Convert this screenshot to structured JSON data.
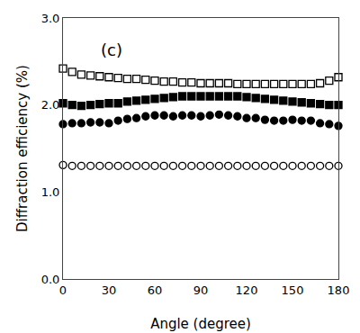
{
  "chart_data": {
    "type": "scatter",
    "xlabel": "Angle (degree)",
    "ylabel": "Diffraction efficiency (%)",
    "annotations": [
      "(c)"
    ],
    "xlim": [
      0,
      180
    ],
    "ylim": [
      0.0,
      3.0
    ],
    "xticks": [
      0,
      30,
      60,
      90,
      120,
      150,
      180
    ],
    "yticks": [
      {
        "value": 0.0,
        "label": "0.0"
      },
      {
        "value": 1.0,
        "label": "1.0"
      },
      {
        "value": 2.0,
        "label": "2.0"
      },
      {
        "value": 3.0,
        "label": "3.0"
      }
    ],
    "grid": false,
    "x": [
      0,
      6,
      12,
      18,
      24,
      30,
      36,
      42,
      48,
      54,
      60,
      66,
      72,
      78,
      84,
      90,
      96,
      102,
      108,
      114,
      120,
      126,
      132,
      138,
      144,
      150,
      156,
      162,
      168,
      174,
      180
    ],
    "series": [
      {
        "marker": "circle-open",
        "color": "#000000",
        "values": [
          1.31,
          1.3,
          1.3,
          1.3,
          1.3,
          1.3,
          1.3,
          1.3,
          1.3,
          1.3,
          1.3,
          1.3,
          1.3,
          1.3,
          1.3,
          1.3,
          1.3,
          1.3,
          1.3,
          1.3,
          1.3,
          1.3,
          1.3,
          1.3,
          1.3,
          1.3,
          1.3,
          1.3,
          1.3,
          1.3,
          1.3
        ]
      },
      {
        "marker": "circle",
        "color": "#000000",
        "values": [
          1.78,
          1.79,
          1.79,
          1.8,
          1.8,
          1.79,
          1.82,
          1.84,
          1.85,
          1.87,
          1.88,
          1.88,
          1.87,
          1.88,
          1.88,
          1.87,
          1.88,
          1.89,
          1.88,
          1.87,
          1.85,
          1.85,
          1.83,
          1.82,
          1.82,
          1.83,
          1.82,
          1.82,
          1.79,
          1.78,
          1.76
        ]
      },
      {
        "marker": "square",
        "color": "#000000",
        "values": [
          2.02,
          2.0,
          1.99,
          2.0,
          2.01,
          2.02,
          2.02,
          2.04,
          2.05,
          2.06,
          2.07,
          2.08,
          2.09,
          2.1,
          2.1,
          2.1,
          2.1,
          2.1,
          2.1,
          2.1,
          2.09,
          2.08,
          2.07,
          2.06,
          2.05,
          2.04,
          2.03,
          2.02,
          2.01,
          2.0,
          2.0
        ]
      },
      {
        "marker": "square-open",
        "color": "#000000",
        "values": [
          2.42,
          2.38,
          2.35,
          2.34,
          2.33,
          2.32,
          2.31,
          2.3,
          2.3,
          2.29,
          2.28,
          2.27,
          2.27,
          2.26,
          2.26,
          2.25,
          2.25,
          2.25,
          2.25,
          2.24,
          2.24,
          2.24,
          2.24,
          2.24,
          2.24,
          2.24,
          2.24,
          2.24,
          2.25,
          2.28,
          2.32
        ]
      }
    ]
  }
}
